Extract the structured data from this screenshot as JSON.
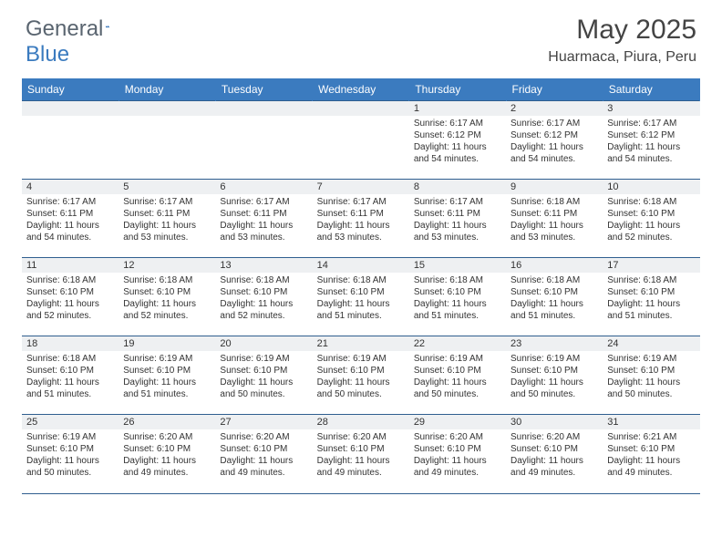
{
  "brand": {
    "general": "General",
    "blue": "Blue"
  },
  "title": "May 2025",
  "location": "Huarmaca, Piura, Peru",
  "colors": {
    "header_bg": "#3b7bbf",
    "header_text": "#ffffff",
    "daynum_bg": "#eef0f2",
    "rule": "#2f5e8f",
    "body_text": "#333333",
    "page_bg": "#ffffff"
  },
  "typography": {
    "title_fontsize": 30,
    "location_fontsize": 16,
    "weekday_fontsize": 12,
    "daynum_fontsize": 11,
    "cell_fontsize": 10
  },
  "weekdays": [
    "Sunday",
    "Monday",
    "Tuesday",
    "Wednesday",
    "Thursday",
    "Friday",
    "Saturday"
  ],
  "weeks": [
    [
      null,
      null,
      null,
      null,
      {
        "n": "1",
        "sunrise": "Sunrise: 6:17 AM",
        "sunset": "Sunset: 6:12 PM",
        "daylight": "Daylight: 11 hours and 54 minutes."
      },
      {
        "n": "2",
        "sunrise": "Sunrise: 6:17 AM",
        "sunset": "Sunset: 6:12 PM",
        "daylight": "Daylight: 11 hours and 54 minutes."
      },
      {
        "n": "3",
        "sunrise": "Sunrise: 6:17 AM",
        "sunset": "Sunset: 6:12 PM",
        "daylight": "Daylight: 11 hours and 54 minutes."
      }
    ],
    [
      {
        "n": "4",
        "sunrise": "Sunrise: 6:17 AM",
        "sunset": "Sunset: 6:11 PM",
        "daylight": "Daylight: 11 hours and 54 minutes."
      },
      {
        "n": "5",
        "sunrise": "Sunrise: 6:17 AM",
        "sunset": "Sunset: 6:11 PM",
        "daylight": "Daylight: 11 hours and 53 minutes."
      },
      {
        "n": "6",
        "sunrise": "Sunrise: 6:17 AM",
        "sunset": "Sunset: 6:11 PM",
        "daylight": "Daylight: 11 hours and 53 minutes."
      },
      {
        "n": "7",
        "sunrise": "Sunrise: 6:17 AM",
        "sunset": "Sunset: 6:11 PM",
        "daylight": "Daylight: 11 hours and 53 minutes."
      },
      {
        "n": "8",
        "sunrise": "Sunrise: 6:17 AM",
        "sunset": "Sunset: 6:11 PM",
        "daylight": "Daylight: 11 hours and 53 minutes."
      },
      {
        "n": "9",
        "sunrise": "Sunrise: 6:18 AM",
        "sunset": "Sunset: 6:11 PM",
        "daylight": "Daylight: 11 hours and 53 minutes."
      },
      {
        "n": "10",
        "sunrise": "Sunrise: 6:18 AM",
        "sunset": "Sunset: 6:10 PM",
        "daylight": "Daylight: 11 hours and 52 minutes."
      }
    ],
    [
      {
        "n": "11",
        "sunrise": "Sunrise: 6:18 AM",
        "sunset": "Sunset: 6:10 PM",
        "daylight": "Daylight: 11 hours and 52 minutes."
      },
      {
        "n": "12",
        "sunrise": "Sunrise: 6:18 AM",
        "sunset": "Sunset: 6:10 PM",
        "daylight": "Daylight: 11 hours and 52 minutes."
      },
      {
        "n": "13",
        "sunrise": "Sunrise: 6:18 AM",
        "sunset": "Sunset: 6:10 PM",
        "daylight": "Daylight: 11 hours and 52 minutes."
      },
      {
        "n": "14",
        "sunrise": "Sunrise: 6:18 AM",
        "sunset": "Sunset: 6:10 PM",
        "daylight": "Daylight: 11 hours and 51 minutes."
      },
      {
        "n": "15",
        "sunrise": "Sunrise: 6:18 AM",
        "sunset": "Sunset: 6:10 PM",
        "daylight": "Daylight: 11 hours and 51 minutes."
      },
      {
        "n": "16",
        "sunrise": "Sunrise: 6:18 AM",
        "sunset": "Sunset: 6:10 PM",
        "daylight": "Daylight: 11 hours and 51 minutes."
      },
      {
        "n": "17",
        "sunrise": "Sunrise: 6:18 AM",
        "sunset": "Sunset: 6:10 PM",
        "daylight": "Daylight: 11 hours and 51 minutes."
      }
    ],
    [
      {
        "n": "18",
        "sunrise": "Sunrise: 6:18 AM",
        "sunset": "Sunset: 6:10 PM",
        "daylight": "Daylight: 11 hours and 51 minutes."
      },
      {
        "n": "19",
        "sunrise": "Sunrise: 6:19 AM",
        "sunset": "Sunset: 6:10 PM",
        "daylight": "Daylight: 11 hours and 51 minutes."
      },
      {
        "n": "20",
        "sunrise": "Sunrise: 6:19 AM",
        "sunset": "Sunset: 6:10 PM",
        "daylight": "Daylight: 11 hours and 50 minutes."
      },
      {
        "n": "21",
        "sunrise": "Sunrise: 6:19 AM",
        "sunset": "Sunset: 6:10 PM",
        "daylight": "Daylight: 11 hours and 50 minutes."
      },
      {
        "n": "22",
        "sunrise": "Sunrise: 6:19 AM",
        "sunset": "Sunset: 6:10 PM",
        "daylight": "Daylight: 11 hours and 50 minutes."
      },
      {
        "n": "23",
        "sunrise": "Sunrise: 6:19 AM",
        "sunset": "Sunset: 6:10 PM",
        "daylight": "Daylight: 11 hours and 50 minutes."
      },
      {
        "n": "24",
        "sunrise": "Sunrise: 6:19 AM",
        "sunset": "Sunset: 6:10 PM",
        "daylight": "Daylight: 11 hours and 50 minutes."
      }
    ],
    [
      {
        "n": "25",
        "sunrise": "Sunrise: 6:19 AM",
        "sunset": "Sunset: 6:10 PM",
        "daylight": "Daylight: 11 hours and 50 minutes."
      },
      {
        "n": "26",
        "sunrise": "Sunrise: 6:20 AM",
        "sunset": "Sunset: 6:10 PM",
        "daylight": "Daylight: 11 hours and 49 minutes."
      },
      {
        "n": "27",
        "sunrise": "Sunrise: 6:20 AM",
        "sunset": "Sunset: 6:10 PM",
        "daylight": "Daylight: 11 hours and 49 minutes."
      },
      {
        "n": "28",
        "sunrise": "Sunrise: 6:20 AM",
        "sunset": "Sunset: 6:10 PM",
        "daylight": "Daylight: 11 hours and 49 minutes."
      },
      {
        "n": "29",
        "sunrise": "Sunrise: 6:20 AM",
        "sunset": "Sunset: 6:10 PM",
        "daylight": "Daylight: 11 hours and 49 minutes."
      },
      {
        "n": "30",
        "sunrise": "Sunrise: 6:20 AM",
        "sunset": "Sunset: 6:10 PM",
        "daylight": "Daylight: 11 hours and 49 minutes."
      },
      {
        "n": "31",
        "sunrise": "Sunrise: 6:21 AM",
        "sunset": "Sunset: 6:10 PM",
        "daylight": "Daylight: 11 hours and 49 minutes."
      }
    ]
  ]
}
